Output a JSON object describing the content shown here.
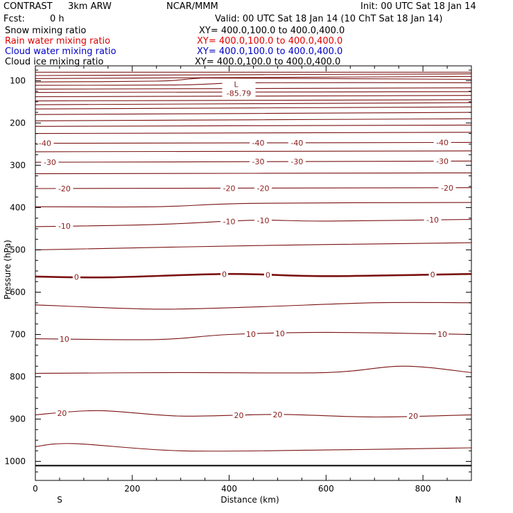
{
  "header": {
    "project": "CONTRAST",
    "model": "3km ARW",
    "org": "NCAR/MMM",
    "init": "Init: 00 UTC Sat 18 Jan 14",
    "fcst_label": "Fcst:",
    "fcst_value": "0 h",
    "valid": "Valid: 00 UTC Sat 18 Jan 14 (10 ChT Sat 18 Jan 14)"
  },
  "fields": [
    {
      "name": "Snow mixing ratio",
      "xy": "XY= 400.0,100.0 to 400.0,400.0",
      "color": "#000000"
    },
    {
      "name": "Rain water mixing ratio",
      "xy": "XY= 400.0,100.0 to 400.0,400.0",
      "color": "#e00000"
    },
    {
      "name": "Cloud water mixing ratio",
      "xy": "XY= 400.0,100.0 to 400.0,400.0",
      "color": "#0000c8"
    },
    {
      "name": "Cloud ice mixing ratio",
      "xy": "XY= 400.0,100.0 to 400.0,400.0",
      "color": "#000000"
    }
  ],
  "chart_data": {
    "type": "line",
    "subtype": "contour cross-section",
    "xlabel": "Distance (km)",
    "ylabel": "Pressure (hPa)",
    "xlim": [
      0,
      900
    ],
    "ylim": [
      1045,
      65
    ],
    "x_ticks": [
      "0",
      "200",
      "400",
      "600",
      "800"
    ],
    "y_ticks": [
      "100",
      "200",
      "300",
      "400",
      "500",
      "600",
      "700",
      "800",
      "900",
      "1000"
    ],
    "x_end_labels": {
      "left": "S",
      "right": "N"
    },
    "contour_color": "#7a1010",
    "low_center": {
      "label": "L",
      "value": "-85.79",
      "x": 420,
      "p": 115
    },
    "surface_pressure": 1010,
    "contours": [
      {
        "x": [
          0,
          900
        ],
        "p": [
          80,
          80
        ]
      },
      {
        "x": [
          0,
          900
        ],
        "p": [
          88,
          84
        ]
      },
      {
        "x": [
          0,
          900
        ],
        "p": [
          95,
          90
        ]
      },
      {
        "x": [
          0,
          250,
          330,
          400,
          900
        ],
        "p": [
          103,
          101,
          95,
          94,
          97
        ]
      },
      {
        "x": [
          0,
          300,
          450,
          900
        ],
        "p": [
          111,
          110,
          105,
          105
        ]
      },
      {
        "x": [
          0,
          900
        ],
        "p": [
          120,
          117
        ]
      },
      {
        "x": [
          0,
          900
        ],
        "p": [
          128,
          126
        ]
      },
      {
        "x": [
          0,
          900
        ],
        "p": [
          138,
          135
        ]
      },
      {
        "x": [
          0,
          900
        ],
        "p": [
          148,
          145
        ]
      },
      {
        "x": [
          0,
          900
        ],
        "p": [
          157,
          152
        ]
      },
      {
        "x": [
          0,
          900
        ],
        "p": [
          167,
          162
        ]
      },
      {
        "x": [
          0,
          900
        ],
        "p": [
          180,
          175
        ]
      },
      {
        "x": [
          0,
          900
        ],
        "p": [
          195,
          190
        ]
      },
      {
        "x": [
          0,
          900
        ],
        "p": [
          208,
          205
        ]
      },
      {
        "x": [
          0,
          900
        ],
        "p": [
          225,
          222
        ]
      },
      {
        "x": [
          0,
          900
        ],
        "p": [
          248,
          246
        ],
        "label": "-40",
        "lx": [
          20,
          460,
          540,
          840
        ]
      },
      {
        "x": [
          0,
          900
        ],
        "p": [
          268,
          266
        ]
      },
      {
        "x": [
          0,
          900
        ],
        "p": [
          293,
          290
        ],
        "label": "-30",
        "lx": [
          30,
          460,
          540,
          840
        ]
      },
      {
        "x": [
          0,
          900
        ],
        "p": [
          320,
          318
        ]
      },
      {
        "x": [
          0,
          900
        ],
        "p": [
          355,
          353
        ],
        "label": "-20",
        "lx": [
          60,
          400,
          470,
          850
        ]
      },
      {
        "x": [
          0,
          250,
          450,
          900
        ],
        "p": [
          398,
          398,
          390,
          388
        ]
      },
      {
        "x": [
          0,
          250,
          450,
          600,
          900
        ],
        "p": [
          445,
          440,
          430,
          432,
          428
        ],
        "label": "-10",
        "lx": [
          60,
          400,
          470,
          820
        ]
      },
      {
        "x": [
          0,
          450,
          900
        ],
        "p": [
          500,
          490,
          483
        ]
      },
      {
        "x": [
          0,
          150,
          400,
          600,
          900
        ],
        "p": [
          563,
          565,
          557,
          562,
          557
        ],
        "label": "0",
        "lx": [
          85,
          390,
          480,
          820
        ],
        "bold": true
      },
      {
        "x": [
          0,
          250,
          450,
          700,
          900
        ],
        "p": [
          630,
          640,
          635,
          625,
          625
        ]
      },
      {
        "x": [
          0,
          250,
          400,
          600,
          900
        ],
        "p": [
          710,
          712,
          700,
          695,
          700
        ],
        "label": "10",
        "lx": [
          60,
          445,
          505,
          840
        ]
      },
      {
        "x": [
          0,
          300,
          600,
          760,
          900
        ],
        "p": [
          792,
          790,
          790,
          775,
          790
        ]
      },
      {
        "x": [
          0,
          130,
          300,
          500,
          700,
          900
        ],
        "p": [
          890,
          880,
          893,
          889,
          895,
          890
        ],
        "label": "20",
        "lx": [
          55,
          420,
          500,
          780
        ]
      },
      {
        "x": [
          0,
          80,
          300,
          600,
          900
        ],
        "p": [
          965,
          958,
          975,
          973,
          968
        ]
      }
    ]
  }
}
